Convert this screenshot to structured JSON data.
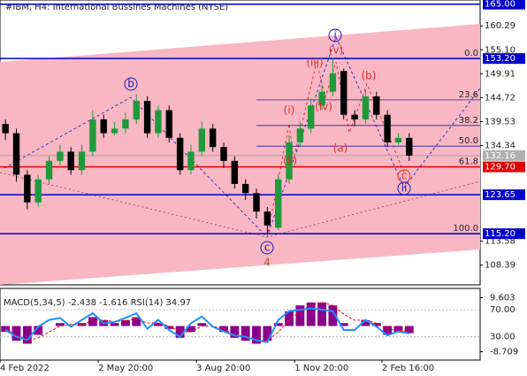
{
  "chart_data": {
    "type": "candlestick",
    "title": "#IBM, H4:  International Bussines Machines (NYSE)",
    "up_color": "#1f9a3a",
    "down_color": "#000000",
    "xlim": [
      0,
      44
    ],
    "xticks": [
      {
        "value": 0,
        "label": "4 Feb 2022"
      },
      {
        "value": 9,
        "label": "2 May 20:00"
      },
      {
        "value": 18,
        "label": "3 Aug 20:00"
      },
      {
        "value": 27,
        "label": "1 Nov 20:00"
      },
      {
        "value": 35,
        "label": "2 Feb 16:00"
      }
    ],
    "ylim": [
      104.1,
      165.9
    ],
    "yticks": [
      {
        "value": 160.29,
        "label": "160.29"
      },
      {
        "value": 155.1,
        "label": "155.10"
      },
      149.91,
      144.72,
      139.53,
      134.34,
      113.58,
      108.39
    ],
    "open": [
      139,
      137,
      128,
      122,
      127,
      131,
      133,
      129,
      133,
      140,
      137,
      138,
      140,
      144,
      137,
      142,
      136,
      129,
      133,
      138,
      134,
      131,
      126,
      124,
      120,
      116.5,
      127,
      135,
      138,
      143,
      146,
      150.5,
      141,
      140,
      145,
      141,
      135,
      136
    ],
    "high": [
      140,
      138,
      129,
      128,
      132,
      134.5,
      134,
      134.5,
      142,
      141,
      139.5,
      141.5,
      145.5,
      145,
      143,
      143,
      137,
      134.5,
      139.5,
      139,
      135,
      132,
      127,
      125,
      121,
      128,
      136.5,
      139.5,
      144.5,
      147.5,
      153.2,
      151,
      142,
      146.5,
      146,
      142,
      137,
      137
    ],
    "low": [
      135.5,
      126.5,
      120.5,
      121,
      126,
      130,
      128,
      128,
      132,
      136,
      136.5,
      137,
      139,
      136,
      136,
      135,
      128,
      128,
      132,
      133,
      129.5,
      125,
      122.5,
      118.5,
      115.2,
      116,
      126,
      134,
      137,
      142,
      145,
      140,
      138.5,
      139,
      140,
      134,
      134.5,
      131
    ],
    "close": [
      137,
      128,
      122,
      127,
      131,
      133,
      129,
      133,
      140,
      137,
      138,
      140,
      144,
      137,
      142,
      136,
      129,
      133,
      138,
      134,
      131,
      126,
      124,
      120,
      117,
      127,
      135,
      138,
      143,
      146,
      150,
      141,
      140,
      145,
      141,
      135,
      136,
      132.16
    ],
    "levels": [
      {
        "value": 165.0,
        "label": "165.00",
        "color": "#0000c8"
      },
      {
        "value": 153.2,
        "label": "153.20",
        "color": "#0000c8"
      },
      {
        "value": 132.16,
        "label": "132.16",
        "color": "#b0b0b0"
      },
      {
        "value": 129.7,
        "label": "129.70",
        "color": "#e00000"
      },
      {
        "value": 123.65,
        "label": "123.65",
        "color": "#0000c8"
      },
      {
        "value": 115.2,
        "label": "115.20",
        "color": "#0000c8"
      }
    ],
    "fib": [
      {
        "label": "0.0",
        "value": 153.2
      },
      {
        "label": "23.6",
        "value": 144.23
      },
      {
        "label": "38.2",
        "value": 138.68
      },
      {
        "label": "50.0",
        "value": 134.2
      },
      {
        "label": "61.8",
        "value": 129.72
      },
      {
        "label": "100.0",
        "value": 115.2
      }
    ],
    "annotations": [
      {
        "text": "b",
        "color": "#1a1ab0"
      },
      {
        "text": "c",
        "color": "#1a1ab0"
      },
      {
        "text": "4",
        "color": "#c0502a"
      },
      {
        "text": "i",
        "color": "#1a1ab0"
      },
      {
        "text": "(v)",
        "color": "#e03030"
      },
      {
        "text": "(iii)",
        "color": "#e03030"
      },
      {
        "text": "(i)",
        "color": "#e03030"
      },
      {
        "text": "(ii)",
        "color": "#e03030"
      },
      {
        "text": "(iv)",
        "color": "#e03030"
      },
      {
        "text": "(a)",
        "color": "#e03030"
      },
      {
        "text": "(b)",
        "color": "#e03030"
      },
      {
        "text": "c",
        "color": "#e03030"
      },
      {
        "text": "ii",
        "color": "#1a1ab0"
      }
    ],
    "indicator": {
      "title": "MACD(5,34,5) -2.438 -1.616 RSI(14) 34.97",
      "ylim": [
        -11.55,
        12.76
      ],
      "yticks": [
        9.603,
        -8.709
      ],
      "y2lim": [
        -4.5,
        101.7
      ],
      "y2ticks": [
        {
          "value": 70,
          "label": "70.00"
        },
        {
          "value": 30,
          "label": "30.00"
        }
      ],
      "series": [
        {
          "name": "MACD",
          "color": "#8b008b",
          "values": [
            -2,
            -5,
            -6,
            -3,
            0,
            1,
            0,
            1,
            3,
            2,
            1,
            2,
            3,
            0,
            1,
            -1,
            -4,
            -2,
            1,
            0,
            -2,
            -4,
            -5,
            -6,
            -5,
            1,
            5,
            7,
            8,
            8,
            7,
            1,
            0,
            2,
            1,
            -3,
            -2,
            -2.438
          ]
        },
        {
          "name": "Signal",
          "color": "#ff0000",
          "values": [
            -1,
            -3,
            -5,
            -4,
            -2,
            0,
            0.5,
            0.5,
            2,
            2,
            1.5,
            1.8,
            2.5,
            1,
            1,
            0,
            -2,
            -2,
            0,
            0,
            -1,
            -3,
            -4,
            -5,
            -5,
            -2,
            2,
            5,
            7,
            8,
            7,
            4,
            2,
            2,
            1,
            -1,
            -1.5,
            -1.616
          ]
        },
        {
          "name": "RSI",
          "color": "#1e90ff",
          "axis": "y2",
          "values": [
            40,
            30,
            25,
            45,
            55,
            58,
            45,
            55,
            65,
            50,
            52,
            58,
            65,
            42,
            55,
            40,
            30,
            50,
            60,
            45,
            38,
            32,
            30,
            25,
            22,
            55,
            68,
            70,
            72,
            70,
            68,
            40,
            40,
            55,
            45,
            32,
            38,
            34.97
          ]
        }
      ]
    }
  }
}
